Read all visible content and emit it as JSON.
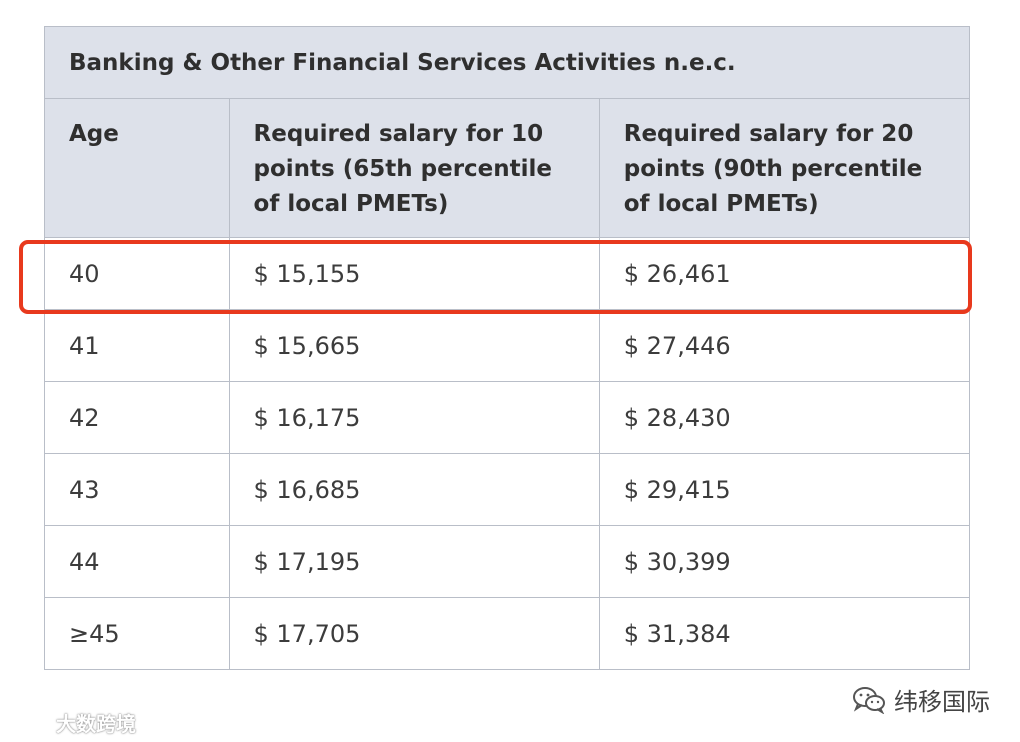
{
  "table": {
    "title": "Banking & Other Financial Services Activities n.e.c.",
    "headers": {
      "age": "Age",
      "salary_10": "Required salary for 10 points (65th percentile of local PMETs)",
      "salary_20": "Required salary for 20 points (90th percentile of local PMETs)"
    },
    "rows": [
      {
        "age": "40",
        "salary_10": "$ 15,155",
        "salary_20": "$ 26,461"
      },
      {
        "age": "41",
        "salary_10": "$ 15,665",
        "salary_20": "$ 27,446"
      },
      {
        "age": "42",
        "salary_10": "$ 16,175",
        "salary_20": "$ 28,430"
      },
      {
        "age": "43",
        "salary_10": "$ 16,685",
        "salary_20": "$ 29,415"
      },
      {
        "age": "44",
        "salary_10": "$ 17,195",
        "salary_20": "$ 30,399"
      },
      {
        "age": "≥45",
        "salary_10": "$ 17,705",
        "salary_20": "$ 31,384"
      }
    ]
  },
  "highlight": {
    "row_age": "40",
    "color": "#e8391d"
  },
  "watermarks": {
    "left_text": "大数跨境",
    "left_icon": "brand-logo-icon",
    "right_text": "纬移国际",
    "right_icon": "wechat-icon"
  }
}
